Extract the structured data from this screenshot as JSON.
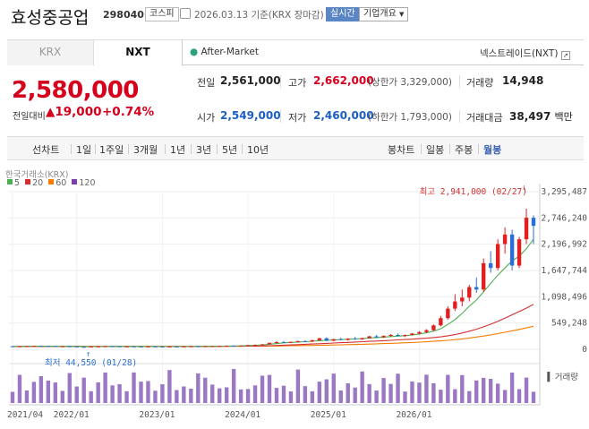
{
  "header": {
    "title": "효성중공업",
    "code": "298040",
    "market": "코스피",
    "date": "2026.03.13  기준(KRX 장마감)",
    "realtime_btn": "실시간",
    "company_btn": "기업개요"
  },
  "tabs": [
    {
      "label": "KRX"
    },
    {
      "label": "NXT"
    }
  ],
  "after_market": "After-Market",
  "nxt_link": "넥스트레이드(NXT)",
  "price": {
    "current": "2,580,000",
    "prev_diff_label": "전일대비",
    "change": "19,000",
    "change_pct": "+0.74%"
  },
  "stats": {
    "prev_label": "전일",
    "prev": "2,561,000",
    "high_label": "고가",
    "high": "2,662,000",
    "high_limit": "(상한가 3,329,000)",
    "volume_label": "거래량",
    "volume": "14,948",
    "open_label": "시가",
    "open": "2,549,000",
    "low_label": "저가",
    "low": "2,460,000",
    "low_limit": "(하한가 1,793,000)",
    "amount_label": "거래대금",
    "amount": "38,497",
    "amount_unit": "백만"
  },
  "periods": {
    "left": [
      "선차트",
      "1일",
      "1주일",
      "3개월",
      "1년",
      "3년",
      "5년",
      "10년"
    ],
    "right": [
      "봉차트",
      "일봉",
      "주봉",
      "월봉"
    ],
    "active": "월봉"
  },
  "chart_source": "한국거래소(KRX)",
  "legend": [
    {
      "label": "5",
      "color": "#4caf50"
    },
    {
      "label": "20",
      "color": "#d32f2f"
    },
    {
      "label": "60",
      "color": "#f57c00"
    },
    {
      "label": "120",
      "color": "#7b3fa8"
    }
  ],
  "chart_data": {
    "type": "candlestick",
    "y_ticks": [
      "3,295,487",
      "2,746,240",
      "2,196,992",
      "1,647,744",
      "1,098,496",
      "549,248",
      "0"
    ],
    "ylim": [
      0,
      3295487
    ],
    "x_ticks": [
      "2021/04",
      "2022/01",
      "2023/01",
      "2024/01",
      "2025/01",
      "2026/01"
    ],
    "max_annotation": "최고 2,941,000 (02/27)",
    "min_annotation": "최저 44,550 (01/28)",
    "volume_label": "거래량",
    "candles": [
      [
        63000,
        66000,
        55000,
        58000
      ],
      [
        58000,
        64000,
        56000,
        62000
      ],
      [
        62000,
        70000,
        60000,
        66000
      ],
      [
        66000,
        75000,
        62000,
        72000
      ],
      [
        72000,
        78000,
        65000,
        68000
      ],
      [
        68000,
        73000,
        62000,
        66000
      ],
      [
        66000,
        70000,
        58000,
        60000
      ],
      [
        60000,
        65000,
        55000,
        63000
      ],
      [
        63000,
        68000,
        58000,
        60000
      ],
      [
        60000,
        62000,
        48000,
        52000
      ],
      [
        52000,
        55000,
        44550,
        50000
      ],
      [
        50000,
        60000,
        49000,
        58000
      ],
      [
        58000,
        64000,
        54000,
        60000
      ],
      [
        60000,
        66000,
        56000,
        64000
      ],
      [
        64000,
        70000,
        60000,
        62000
      ],
      [
        62000,
        66000,
        55000,
        57000
      ],
      [
        57000,
        62000,
        52000,
        60000
      ],
      [
        60000,
        64000,
        55000,
        58000
      ],
      [
        58000,
        63000,
        53000,
        56000
      ],
      [
        56000,
        62000,
        52000,
        59000
      ],
      [
        59000,
        64000,
        55000,
        57000
      ],
      [
        57000,
        61000,
        52000,
        55000
      ],
      [
        55000,
        60000,
        51000,
        58000
      ],
      [
        58000,
        63000,
        54000,
        56000
      ],
      [
        56000,
        62000,
        53000,
        60000
      ],
      [
        60000,
        66000,
        56000,
        63000
      ],
      [
        63000,
        68000,
        58000,
        61000
      ],
      [
        61000,
        65000,
        56000,
        64000
      ],
      [
        64000,
        70000,
        60000,
        66000
      ],
      [
        66000,
        72000,
        62000,
        70000
      ],
      [
        70000,
        78000,
        66000,
        74000
      ],
      [
        74000,
        82000,
        70000,
        72000
      ],
      [
        72000,
        80000,
        68000,
        78000
      ],
      [
        78000,
        90000,
        74000,
        86000
      ],
      [
        86000,
        100000,
        80000,
        92000
      ],
      [
        92000,
        110000,
        88000,
        104000
      ],
      [
        104000,
        140000,
        100000,
        135000
      ],
      [
        135000,
        165000,
        125000,
        150000
      ],
      [
        150000,
        175000,
        135000,
        142000
      ],
      [
        142000,
        160000,
        130000,
        155000
      ],
      [
        155000,
        180000,
        145000,
        170000
      ],
      [
        170000,
        190000,
        150000,
        160000
      ],
      [
        160000,
        200000,
        155000,
        190000
      ],
      [
        190000,
        240000,
        180000,
        230000
      ],
      [
        230000,
        250000,
        170000,
        180000
      ],
      [
        180000,
        220000,
        170000,
        210000
      ],
      [
        210000,
        240000,
        190000,
        200000
      ],
      [
        200000,
        230000,
        180000,
        225000
      ],
      [
        225000,
        260000,
        200000,
        210000
      ],
      [
        210000,
        240000,
        195000,
        235000
      ],
      [
        235000,
        280000,
        220000,
        270000
      ],
      [
        270000,
        300000,
        240000,
        250000
      ],
      [
        250000,
        290000,
        235000,
        280000
      ],
      [
        280000,
        320000,
        260000,
        300000
      ],
      [
        300000,
        330000,
        270000,
        280000
      ],
      [
        280000,
        310000,
        255000,
        300000
      ],
      [
        300000,
        340000,
        285000,
        330000
      ],
      [
        330000,
        380000,
        310000,
        360000
      ],
      [
        360000,
        420000,
        340000,
        400000
      ],
      [
        400000,
        520000,
        380000,
        500000
      ],
      [
        500000,
        700000,
        480000,
        650000
      ],
      [
        650000,
        900000,
        620000,
        850000
      ],
      [
        850000,
        1150000,
        800000,
        1000000
      ],
      [
        1000000,
        1250000,
        900000,
        1080000
      ],
      [
        1080000,
        1350000,
        1000000,
        1300000
      ],
      [
        1300000,
        1500000,
        1180000,
        1250000
      ],
      [
        1250000,
        1900000,
        1200000,
        1800000
      ],
      [
        1800000,
        2050000,
        1600000,
        1700000
      ],
      [
        1700000,
        2300000,
        1650000,
        2200000
      ],
      [
        2200000,
        2550000,
        2000000,
        2400000
      ],
      [
        2400000,
        2500000,
        1650000,
        1750000
      ],
      [
        1750000,
        2350000,
        1700000,
        2300000
      ],
      [
        2300000,
        2941000,
        2200000,
        2750000
      ],
      [
        2750000,
        2800000,
        2200000,
        2580000
      ]
    ],
    "ma5": [
      58000,
      60000,
      62000,
      64000,
      66000,
      66000,
      64000,
      62000,
      61000,
      58000,
      55000,
      54000,
      56000,
      58000,
      60000,
      61000,
      60000,
      59000,
      58000,
      58000,
      58000,
      57000,
      57000,
      57000,
      58000,
      59000,
      60000,
      62000,
      64000,
      66000,
      68000,
      70000,
      72000,
      78000,
      84000,
      90000,
      105000,
      120000,
      135000,
      145000,
      152000,
      160000,
      168000,
      180000,
      190000,
      195000,
      205000,
      210000,
      215000,
      222000,
      235000,
      245000,
      255000,
      265000,
      275000,
      285000,
      300000,
      320000,
      345000,
      380000,
      430000,
      520000,
      620000,
      750000,
      900000,
      1030000,
      1200000,
      1380000,
      1550000,
      1700000,
      1850000,
      1950000,
      2100000,
      2300000
    ],
    "ma20": [
      60000,
      60000,
      61000,
      61000,
      62000,
      62000,
      62000,
      62000,
      62000,
      61000,
      60000,
      60000,
      60000,
      60000,
      60000,
      60000,
      60000,
      59000,
      59000,
      59000,
      59000,
      59000,
      59000,
      59000,
      59000,
      59000,
      59000,
      60000,
      60000,
      61000,
      62000,
      63000,
      64000,
      66000,
      68000,
      71000,
      75000,
      80000,
      86000,
      92000,
      98000,
      104000,
      110000,
      117000,
      124000,
      131000,
      138000,
      145000,
      152000,
      159000,
      166000,
      173000,
      180000,
      188000,
      196000,
      204000,
      212000,
      222000,
      232000,
      245000,
      260000,
      282000,
      308000,
      340000,
      378000,
      420000,
      470000,
      525000,
      585000,
      650000,
      720000,
      790000,
      860000,
      940000
    ],
    "ma60": [
      56000,
      56500,
      57000,
      57500,
      58000,
      58500,
      59000,
      59500,
      60000,
      60000,
      60000,
      60000,
      60000,
      60000,
      60000,
      60000,
      60000,
      60000,
      60000,
      60000,
      60000,
      60000,
      60000,
      60000,
      60000,
      60500,
      61000,
      61500,
      62000,
      62500,
      63000,
      63500,
      64000,
      65000,
      66000,
      67000,
      68500,
      70000,
      72000,
      74000,
      76000,
      78000,
      81000,
      84000,
      87000,
      90000,
      93000,
      97000,
      101000,
      105000,
      109000,
      114000,
      119000,
      124000,
      130000,
      136000,
      143000,
      150000,
      158000,
      166000,
      176000,
      188000,
      202000,
      218000,
      236000,
      256000,
      278000,
      302000,
      328000,
      356000,
      386000,
      416000,
      448000,
      482000
    ]
  }
}
